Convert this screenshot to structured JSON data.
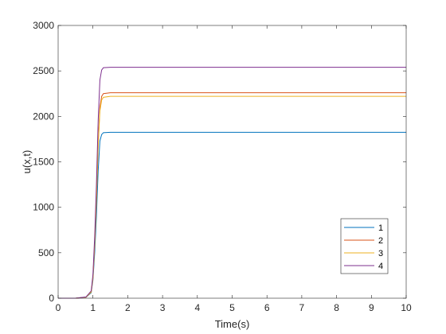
{
  "chart_data": {
    "type": "line",
    "title": "",
    "xlabel": "Time(s)",
    "ylabel": "u(x,t)",
    "xlim": [
      0,
      10
    ],
    "ylim": [
      0,
      3000
    ],
    "xticks": [
      0,
      1,
      2,
      3,
      4,
      5,
      6,
      7,
      8,
      9,
      10
    ],
    "yticks": [
      0,
      500,
      1000,
      1500,
      2000,
      2500,
      3000
    ],
    "grid": false,
    "legend_position": "bottom-right",
    "series": [
      {
        "name": "1",
        "color": "#0072BD",
        "x": [
          0,
          0.5,
          0.8,
          0.95,
          1.0,
          1.05,
          1.1,
          1.15,
          1.2,
          1.25,
          1.3,
          1.5,
          2,
          4,
          6,
          8,
          10
        ],
        "y": [
          0,
          0,
          10,
          60,
          200,
          500,
          900,
          1400,
          1730,
          1800,
          1820,
          1825,
          1825,
          1825,
          1825,
          1825,
          1825
        ]
      },
      {
        "name": "2",
        "color": "#D95319",
        "x": [
          0,
          0.5,
          0.8,
          0.95,
          1.0,
          1.05,
          1.1,
          1.15,
          1.2,
          1.25,
          1.3,
          1.5,
          2,
          4,
          6,
          8,
          10
        ],
        "y": [
          0,
          0,
          12,
          70,
          230,
          600,
          1100,
          1700,
          2100,
          2220,
          2250,
          2260,
          2260,
          2260,
          2260,
          2260,
          2260
        ]
      },
      {
        "name": "3",
        "color": "#EDB120",
        "x": [
          0,
          0.5,
          0.8,
          0.95,
          1.0,
          1.05,
          1.1,
          1.15,
          1.2,
          1.25,
          1.3,
          1.5,
          2,
          4,
          6,
          8,
          10
        ],
        "y": [
          0,
          0,
          11,
          68,
          225,
          590,
          1080,
          1670,
          2060,
          2180,
          2210,
          2220,
          2220,
          2220,
          2220,
          2220,
          2220
        ]
      },
      {
        "name": "4",
        "color": "#7E2F8E",
        "x": [
          0,
          0.5,
          0.8,
          0.95,
          1.0,
          1.05,
          1.1,
          1.15,
          1.2,
          1.25,
          1.3,
          1.5,
          2,
          4,
          6,
          8,
          10
        ],
        "y": [
          0,
          0,
          14,
          80,
          260,
          680,
          1250,
          1950,
          2400,
          2510,
          2535,
          2540,
          2540,
          2540,
          2540,
          2540,
          2540
        ]
      }
    ]
  }
}
